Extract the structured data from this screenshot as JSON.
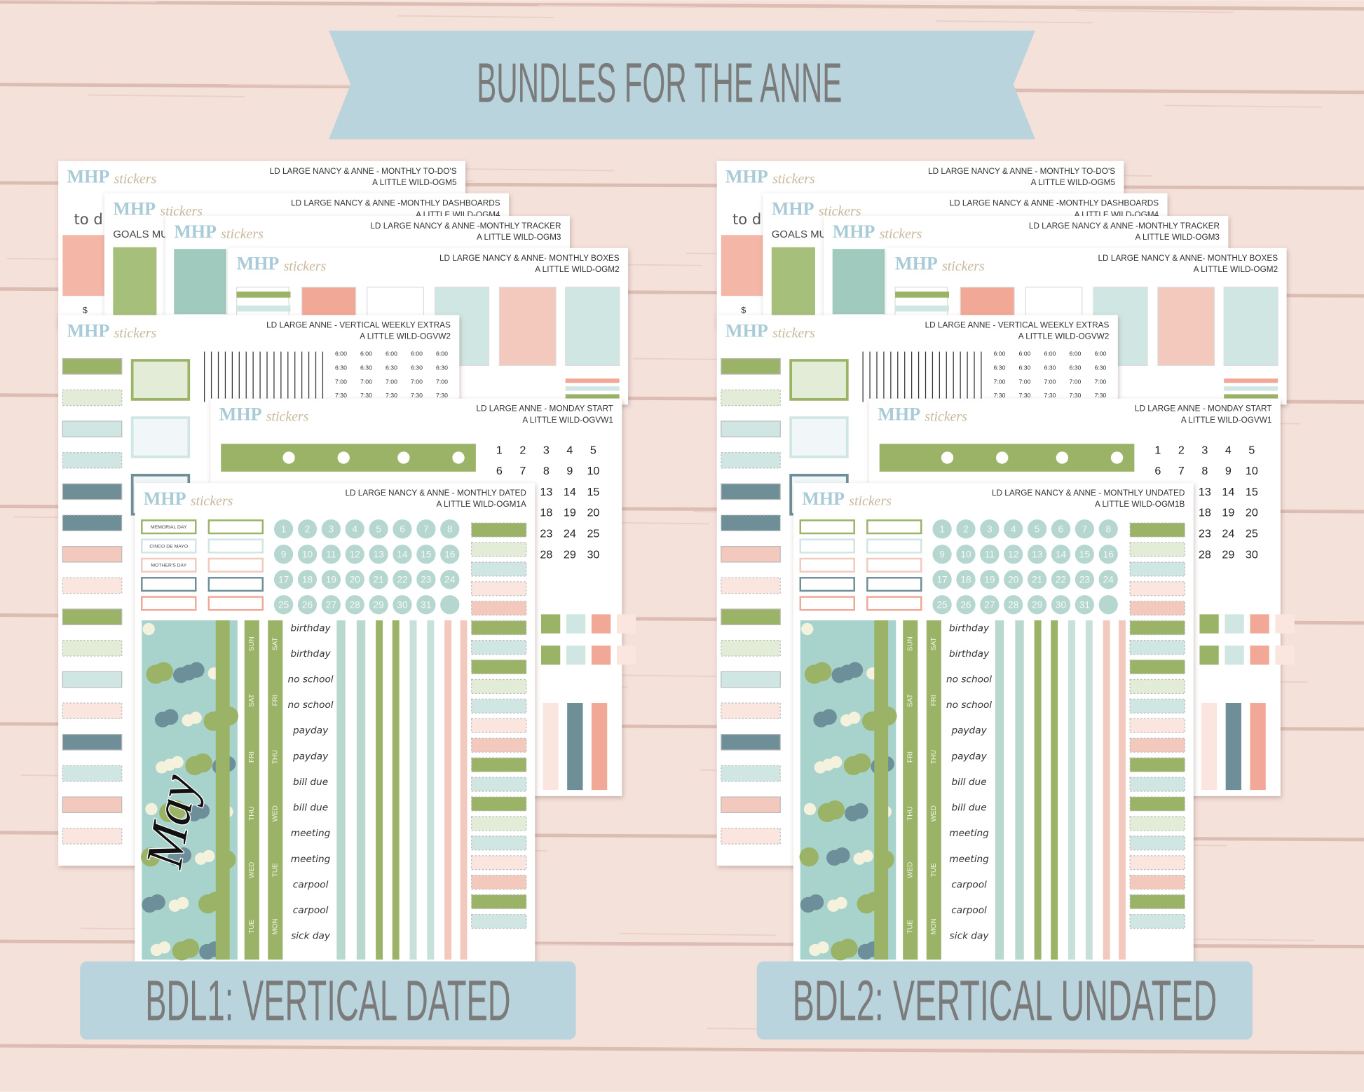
{
  "banner": {
    "title": "BUNDLES FOR THE ANNE"
  },
  "common": {
    "brand": "MHP",
    "brand_script": "stickers",
    "to_do_fragment": "to d",
    "goals_fragment": "GOALS MU",
    "dollar": "$",
    "times": [
      "6:00",
      "6:30",
      "7:00",
      "7:30"
    ],
    "dates": [
      "1",
      "2",
      "3",
      "4",
      "5",
      "6",
      "7",
      "8",
      "9",
      "10",
      "11",
      "12",
      "13",
      "14",
      "15",
      "16",
      "17",
      "18",
      "19",
      "20",
      "21",
      "22",
      "23",
      "24",
      "25",
      "26",
      "27",
      "28",
      "29",
      "30",
      "31"
    ],
    "weekdays_a": [
      "SUN",
      "SAT",
      "FRI",
      "THU",
      "WED",
      "TUE"
    ],
    "weekdays_b": [
      "SAT",
      "FRI",
      "THU",
      "WED",
      "TUE",
      "MON"
    ],
    "words": [
      "birthday",
      "birthday",
      "no school",
      "no school",
      "payday",
      "payday",
      "bill due",
      "bill due",
      "meeting",
      "meeting",
      "carpool",
      "carpool",
      "sick day"
    ]
  },
  "bundles": [
    {
      "label": "BDL1: VERTICAL DATED",
      "sheets": [
        {
          "title": "LD LARGE NANCY & ANNE - MONTHLY TO-DO'S",
          "subtitle": "A LITTLE WILD-OGM5"
        },
        {
          "title": "LD LARGE NANCY & ANNE -MONTHLY DASHBOARDS",
          "subtitle": "A LITTLE WILD-OGM4"
        },
        {
          "title": "LD LARGE NANCY & ANNE -MONTHLY TRACKER",
          "subtitle": "A LITTLE WILD-OGM3"
        },
        {
          "title": "LD LARGE NANCY & ANNE- MONTHLY BOXES",
          "subtitle": "A LITTLE WILD-OGM2"
        },
        {
          "title": "LD LARGE ANNE  - VERTICAL WEEKLY EXTRAS",
          "subtitle": "A LITTLE WILD-OGVW2"
        },
        {
          "title": "LD LARGE ANNE - MONDAY START",
          "subtitle": "A LITTLE WILD-OGVW1"
        },
        {
          "title": "LD LARGE NANCY & ANNE - MONTHLY DATED",
          "subtitle": "A LITTLE WILD-OGM1A"
        }
      ],
      "holidays": [
        "MEMORIAL DAY",
        "CINCO DE MAYO",
        "MOTHER'S DAY"
      ],
      "month_script": "May"
    },
    {
      "label": "BDL2: VERTICAL UNDATED",
      "sheets": [
        {
          "title": "LD LARGE NANCY & ANNE - MONTHLY TO-DO'S",
          "subtitle": "A LITTLE WILD-OGM5"
        },
        {
          "title": "LD LARGE NANCY & ANNE -MONTHLY DASHBOARDS",
          "subtitle": "A LITTLE WILD-OGM4"
        },
        {
          "title": "LD LARGE NANCY & ANNE -MONTHLY TRACKER",
          "subtitle": "A LITTLE WILD-OGM3"
        },
        {
          "title": "LD LARGE NANCY & ANNE- MONTHLY BOXES",
          "subtitle": "A LITTLE WILD-OGM2"
        },
        {
          "title": "LD LARGE ANNE  - VERTICAL WEEKLY EXTRAS",
          "subtitle": "A LITTLE WILD-OGVW2"
        },
        {
          "title": "LD LARGE ANNE - MONDAY START",
          "subtitle": "A LITTLE WILD-OGVW1"
        },
        {
          "title": "LD LARGE NANCY & ANNE - MONTHLY UNDATED",
          "subtitle": "A LITTLE WILD-OGM1B"
        }
      ]
    }
  ]
}
